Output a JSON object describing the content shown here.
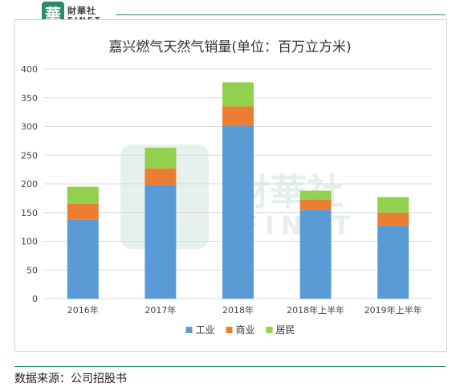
{
  "logo": {
    "badge": "華",
    "name_cn": "財華社",
    "name_en": "FINET"
  },
  "watermark": {
    "name_cn": "財華社",
    "name_en": "FINET"
  },
  "source_note": "数据来源：公司招股书",
  "colors": {
    "industrial": "#5b9bd5",
    "commercial": "#ed7d31",
    "residential": "#92d050",
    "grid": "#d9d9d9",
    "brand": "#2e8b6a"
  },
  "chart_data": {
    "type": "bar",
    "stacked": true,
    "title": "嘉兴燃气天然气销量(单位：百万立方米)",
    "xlabel": "",
    "ylabel": "",
    "categories": [
      "2016年",
      "2017年",
      "2018年",
      "2018年上半年",
      "2019年上半年"
    ],
    "ylim": [
      0,
      400
    ],
    "yticks": [
      0,
      50,
      100,
      150,
      200,
      250,
      300,
      350,
      400
    ],
    "grid": true,
    "legend_position": "bottom",
    "series": [
      {
        "name": "工业",
        "color": "#5b9bd5",
        "values": [
          138,
          198,
          302,
          155,
          127
        ]
      },
      {
        "name": "商业",
        "color": "#ed7d31",
        "values": [
          27,
          29,
          33,
          18,
          23
        ]
      },
      {
        "name": "居民",
        "color": "#92d050",
        "values": [
          30,
          36,
          42,
          15,
          27
        ]
      }
    ]
  }
}
